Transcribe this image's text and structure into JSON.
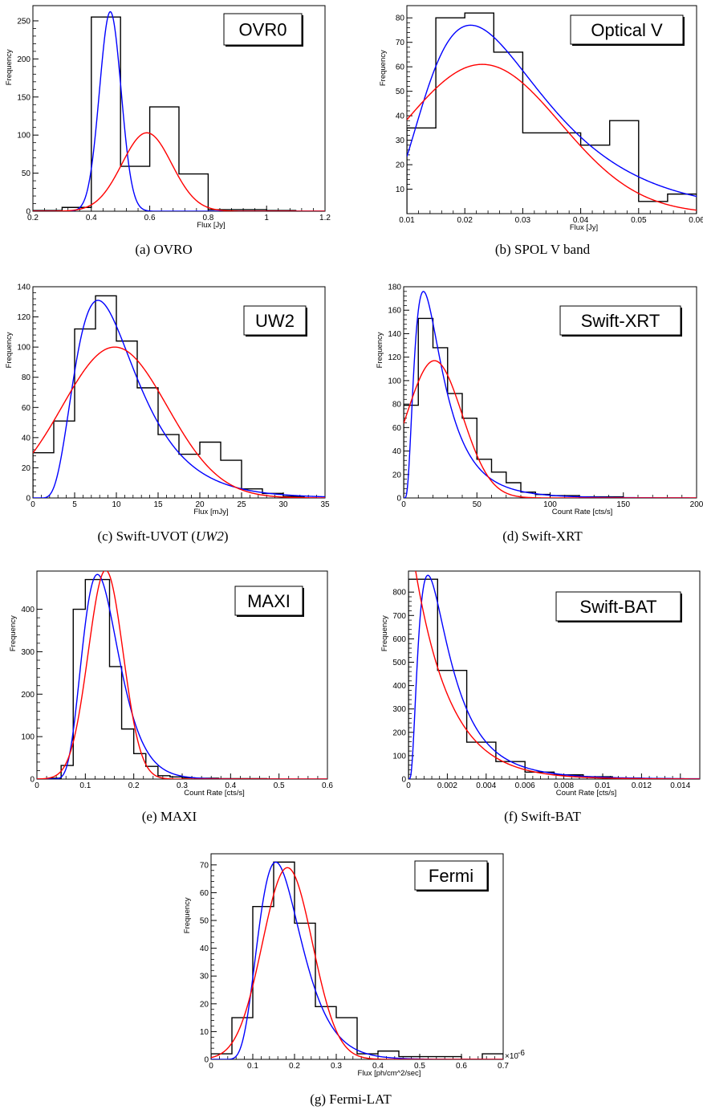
{
  "chart_data": [
    {
      "id": "a",
      "type": "histogram",
      "caption": "(a) OVRO",
      "label_box": "OVR0",
      "xlabel": "Flux [Jy]",
      "ylabel": "Frequency",
      "xlim": [
        0.2,
        1.2
      ],
      "ylim": [
        0,
        270
      ],
      "x_ticks": [
        0.2,
        0.4,
        0.6,
        0.8,
        1,
        1.2
      ],
      "x_tick_labels": [
        "0.2",
        "0.4",
        "0.6",
        "0.8",
        "1",
        "1.2"
      ],
      "y_ticks": [
        0,
        50,
        100,
        150,
        200,
        250
      ],
      "y_tick_labels": [
        "0",
        "50",
        "100",
        "150",
        "200",
        "250"
      ],
      "hist": {
        "edges": [
          0.2,
          0.3,
          0.4,
          0.5,
          0.6,
          0.7,
          0.8,
          0.9,
          1.0,
          1.1,
          1.2
        ],
        "counts": [
          1,
          5,
          255,
          59,
          137,
          49,
          2,
          2,
          1,
          0
        ]
      },
      "fits": [
        {
          "color": "#0000ff",
          "func": "gauss",
          "params": {
            "A": 262,
            "mu": 0.465,
            "sigma": 0.037
          }
        },
        {
          "color": "#ff0000",
          "func": "gauss",
          "params": {
            "A": 103,
            "mu": 0.59,
            "sigma": 0.085
          }
        }
      ]
    },
    {
      "id": "b",
      "type": "histogram",
      "caption": "(b) SPOL V band",
      "label_box": "Optical V",
      "xlabel": "Flux [Jy]",
      "ylabel": "Frequency",
      "xlim": [
        0.01,
        0.06
      ],
      "ylim": [
        0,
        85
      ],
      "x_ticks": [
        0.01,
        0.02,
        0.03,
        0.04,
        0.05,
        0.06
      ],
      "x_tick_labels": [
        "0.01",
        "0.02",
        "0.03",
        "0.04",
        "0.05",
        "0.06"
      ],
      "y_ticks": [
        10,
        20,
        30,
        40,
        50,
        60,
        70,
        80
      ],
      "y_tick_labels": [
        "10",
        "20",
        "30",
        "40",
        "50",
        "60",
        "70",
        "80"
      ],
      "hist": {
        "edges": [
          0.01,
          0.015,
          0.02,
          0.025,
          0.03,
          0.035,
          0.04,
          0.045,
          0.05,
          0.055,
          0.06
        ],
        "counts": [
          35,
          80,
          82,
          66,
          33,
          33,
          28,
          38,
          5,
          8
        ]
      },
      "fits": [
        {
          "color": "#0000ff",
          "func": "lognormal",
          "params": {
            "A": 77,
            "mode": 0.021,
            "s": 0.48
          }
        },
        {
          "color": "#ff0000",
          "func": "gauss",
          "params": {
            "A": 61,
            "mu": 0.023,
            "sigma": 0.0135
          }
        }
      ]
    },
    {
      "id": "c",
      "type": "histogram",
      "caption": "(c) Swift-UVOT (",
      "caption_em": "UW2",
      "caption_end": ")",
      "label_box": "UW2",
      "xlabel": "Flux [mJy]",
      "ylabel": "Frequency",
      "xlim": [
        0,
        35
      ],
      "ylim": [
        0,
        140
      ],
      "x_ticks": [
        0,
        5,
        10,
        15,
        20,
        25,
        30,
        35
      ],
      "x_tick_labels": [
        "0",
        "5",
        "10",
        "15",
        "20",
        "25",
        "30",
        "35"
      ],
      "y_ticks": [
        0,
        20,
        40,
        60,
        80,
        100,
        120,
        140
      ],
      "y_tick_labels": [
        "0",
        "20",
        "40",
        "60",
        "80",
        "100",
        "120",
        "140"
      ],
      "hist": {
        "edges": [
          0,
          2.5,
          5,
          7.5,
          10,
          12.5,
          15,
          17.5,
          20,
          22.5,
          25,
          27.5,
          30,
          32.5
        ],
        "counts": [
          30,
          51,
          112,
          134,
          104,
          73,
          42,
          29,
          37,
          25,
          6,
          3,
          1
        ]
      },
      "fits": [
        {
          "color": "#0000ff",
          "func": "lognormal",
          "params": {
            "A": 131,
            "mode": 7.8,
            "s": 0.47
          }
        },
        {
          "color": "#ff0000",
          "func": "gauss",
          "params": {
            "A": 100,
            "mu": 9.8,
            "sigma": 6.3
          }
        }
      ]
    },
    {
      "id": "d",
      "type": "histogram",
      "caption": "(d) Swift-XRT",
      "label_box": "Swift-XRT",
      "xlabel": "Count Rate [cts/s]",
      "ylabel": "Frequency",
      "xlim": [
        0,
        200
      ],
      "ylim": [
        0,
        180
      ],
      "x_ticks": [
        0,
        50,
        100,
        150,
        200
      ],
      "x_tick_labels": [
        "0",
        "50",
        "100",
        "150",
        "200"
      ],
      "y_ticks": [
        0,
        20,
        40,
        60,
        80,
        100,
        120,
        140,
        160,
        180
      ],
      "y_tick_labels": [
        "0",
        "20",
        "40",
        "60",
        "80",
        "100",
        "120",
        "140",
        "160",
        "180"
      ],
      "hist": {
        "edges": [
          0,
          10,
          20,
          30,
          40,
          50,
          60,
          70,
          80,
          90,
          100,
          110,
          120,
          130,
          140,
          150,
          160,
          170,
          180
        ],
        "counts": [
          79,
          153,
          128,
          89,
          68,
          33,
          22,
          13,
          5,
          3,
          2,
          2,
          1,
          1,
          1,
          0,
          0,
          0
        ]
      },
      "fits": [
        {
          "color": "#0000ff",
          "func": "lognormal",
          "params": {
            "A": 176,
            "mode": 13.5,
            "s": 0.68
          }
        },
        {
          "color": "#ff0000",
          "func": "gauss",
          "params": {
            "A": 117,
            "mu": 21,
            "sigma": 19
          }
        }
      ]
    },
    {
      "id": "e",
      "type": "histogram",
      "caption": "(e) MAXI",
      "label_box": "MAXI",
      "xlabel": "Count Rate [cts/s]",
      "ylabel": "Frequency",
      "xlim": [
        0,
        0.6
      ],
      "ylim": [
        0,
        490
      ],
      "x_ticks": [
        0,
        0.1,
        0.2,
        0.3,
        0.4,
        0.5,
        0.6
      ],
      "x_tick_labels": [
        "0",
        "0.1",
        "0.2",
        "0.3",
        "0.4",
        "0.5",
        "0.6"
      ],
      "y_ticks": [
        0,
        100,
        200,
        300,
        400
      ],
      "y_tick_labels": [
        "0",
        "100",
        "200",
        "300",
        "400"
      ],
      "hist": {
        "edges": [
          0,
          0.025,
          0.05,
          0.075,
          0.1,
          0.125,
          0.15,
          0.175,
          0.2,
          0.225,
          0.25,
          0.275,
          0.3,
          0.325,
          0.35,
          0.375,
          0.4,
          0.425,
          0.45,
          0.475,
          0.5
        ],
        "counts": [
          0,
          2,
          32,
          400,
          470,
          470,
          265,
          118,
          60,
          30,
          8,
          5,
          3,
          2,
          2,
          1,
          1,
          1,
          1,
          0
        ]
      },
      "fits": [
        {
          "color": "#0000ff",
          "func": "lognormal",
          "params": {
            "A": 482,
            "mode": 0.125,
            "s": 0.3
          }
        },
        {
          "color": "#ff0000",
          "func": "gauss",
          "params": {
            "A": 492,
            "mu": 0.142,
            "sigma": 0.036
          }
        }
      ]
    },
    {
      "id": "f",
      "type": "histogram",
      "caption": "(f) Swift-BAT",
      "label_box": "Swift-BAT",
      "xlabel": "Count Rate [cts/s]",
      "ylabel": "Frequency",
      "xlim": [
        0,
        0.015
      ],
      "ylim": [
        0,
        890
      ],
      "x_ticks": [
        0,
        0.002,
        0.004,
        0.006,
        0.008,
        0.01,
        0.012,
        0.014
      ],
      "x_tick_labels": [
        "0",
        "0.002",
        "0.004",
        "0.006",
        "0.008",
        "0.01",
        "0.012",
        "0.014"
      ],
      "y_ticks": [
        0,
        100,
        200,
        300,
        400,
        500,
        600,
        700,
        800
      ],
      "y_tick_labels": [
        "0",
        "100",
        "200",
        "300",
        "400",
        "500",
        "600",
        "700",
        "800"
      ],
      "hist": {
        "edges": [
          0,
          0.0015,
          0.003,
          0.0045,
          0.006,
          0.0075,
          0.009,
          0.0105,
          0.012,
          0.0135
        ],
        "counts": [
          855,
          465,
          158,
          75,
          30,
          18,
          10,
          4,
          2
        ]
      },
      "fits": [
        {
          "color": "#0000ff",
          "func": "lognormal",
          "params": {
            "A": 872,
            "mode": 0.001,
            "s": 0.75
          }
        },
        {
          "color": "#ff0000",
          "func": "exp",
          "params": {
            "A": 1090,
            "lambda": 550
          }
        }
      ]
    },
    {
      "id": "g",
      "type": "histogram",
      "caption": "(g) Fermi-LAT",
      "label_box": "Fermi",
      "xlabel": "Flux [ph/cm^2/sec]",
      "ylabel": "Frequency",
      "x_exponent": "×10",
      "x_exponent_sup": "-6",
      "xlim": [
        0,
        0.7
      ],
      "ylim": [
        0,
        74
      ],
      "x_ticks": [
        0,
        0.1,
        0.2,
        0.3,
        0.4,
        0.5,
        0.6,
        0.7
      ],
      "x_tick_labels": [
        "0",
        "0.1",
        "0.2",
        "0.3",
        "0.4",
        "0.5",
        "0.6",
        "0.7"
      ],
      "y_ticks": [
        0,
        10,
        20,
        30,
        40,
        50,
        60,
        70
      ],
      "y_tick_labels": [
        "0",
        "10",
        "20",
        "30",
        "40",
        "50",
        "60",
        "70"
      ],
      "hist": {
        "edges": [
          0,
          0.05,
          0.1,
          0.15,
          0.2,
          0.25,
          0.3,
          0.35,
          0.4,
          0.45,
          0.5,
          0.55,
          0.6,
          0.65,
          0.7
        ],
        "counts": [
          2,
          15,
          55,
          71,
          49,
          19,
          15,
          2,
          3,
          1,
          1,
          1,
          0,
          2
        ]
      },
      "fits": [
        {
          "color": "#0000ff",
          "func": "lognormal",
          "params": {
            "A": 71,
            "mode": 0.155,
            "s": 0.33
          }
        },
        {
          "color": "#ff0000",
          "func": "gauss",
          "params": {
            "A": 69,
            "mu": 0.183,
            "sigma": 0.06
          }
        }
      ]
    }
  ]
}
